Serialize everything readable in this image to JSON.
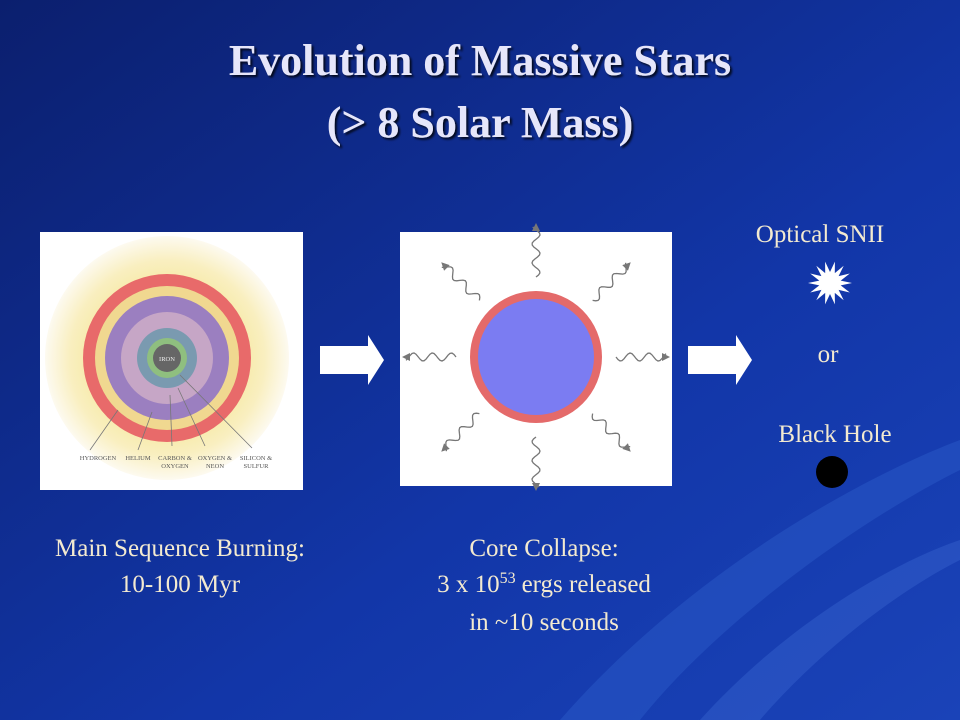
{
  "title": [
    "Evolution of Massive Stars",
    "(> 8 Solar Mass)"
  ],
  "panels": [
    {
      "caption": [
        "Main Sequence Burning:",
        "10-100 Myr"
      ],
      "layers": {
        "core": "IRON",
        "labels": [
          [
            "HYDROGEN"
          ],
          [
            "HELIUM"
          ],
          [
            "CARBON &",
            "OXYGEN"
          ],
          [
            "OXYGEN &",
            "NEON"
          ],
          [
            "SILICON &",
            "SULFUR"
          ]
        ]
      }
    },
    {
      "caption": {
        "line1": "Core Collapse:",
        "base": "3 x 10",
        "exponent": "53",
        "rest": "ergs released",
        "line3": "in ~10 seconds"
      }
    }
  ],
  "outcomes": {
    "first": "Optical SNII",
    "separator": "or",
    "second": "Black Hole"
  }
}
